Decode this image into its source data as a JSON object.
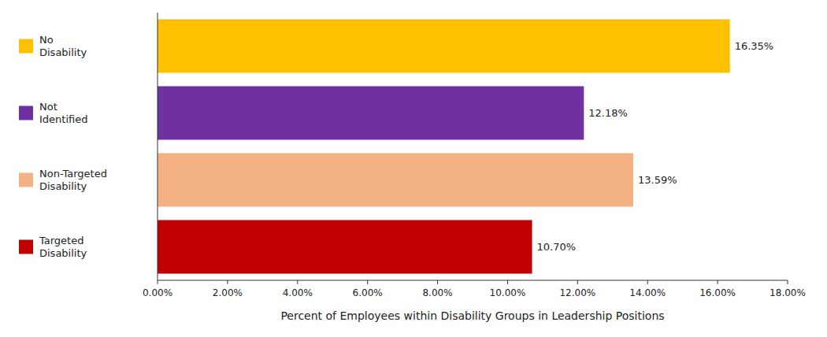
{
  "chart_data": {
    "type": "bar",
    "orientation": "horizontal",
    "categories": [
      "No\nDisability",
      "Not\nIdentified",
      "Non-Targeted\nDisability",
      "Targeted\nDisability"
    ],
    "values": [
      16.35,
      12.18,
      13.59,
      10.7
    ],
    "value_labels": [
      "16.35%",
      "12.18%",
      "13.59%",
      "10.70%"
    ],
    "colors": [
      "#FFC000",
      "#7030A0",
      "#F4B183",
      "#C00000"
    ],
    "xlabel": "Percent of Employees within Disability Groups in Leadership Positions",
    "xlim": [
      0,
      18
    ],
    "xticks": [
      {
        "value": 0,
        "label": "0.00%"
      },
      {
        "value": 2,
        "label": "2.00%"
      },
      {
        "value": 4,
        "label": "4.00%"
      },
      {
        "value": 6,
        "label": "6.00%"
      },
      {
        "value": 8,
        "label": "8.00%"
      },
      {
        "value": 10,
        "label": "10.00%"
      },
      {
        "value": 12,
        "label": "12.00%"
      },
      {
        "value": 14,
        "label": "14.00%"
      },
      {
        "value": 16,
        "label": "16.00%"
      },
      {
        "value": 18,
        "label": "18.00%"
      }
    ],
    "grid": false,
    "data_labels": true,
    "tick_labels": "x"
  }
}
